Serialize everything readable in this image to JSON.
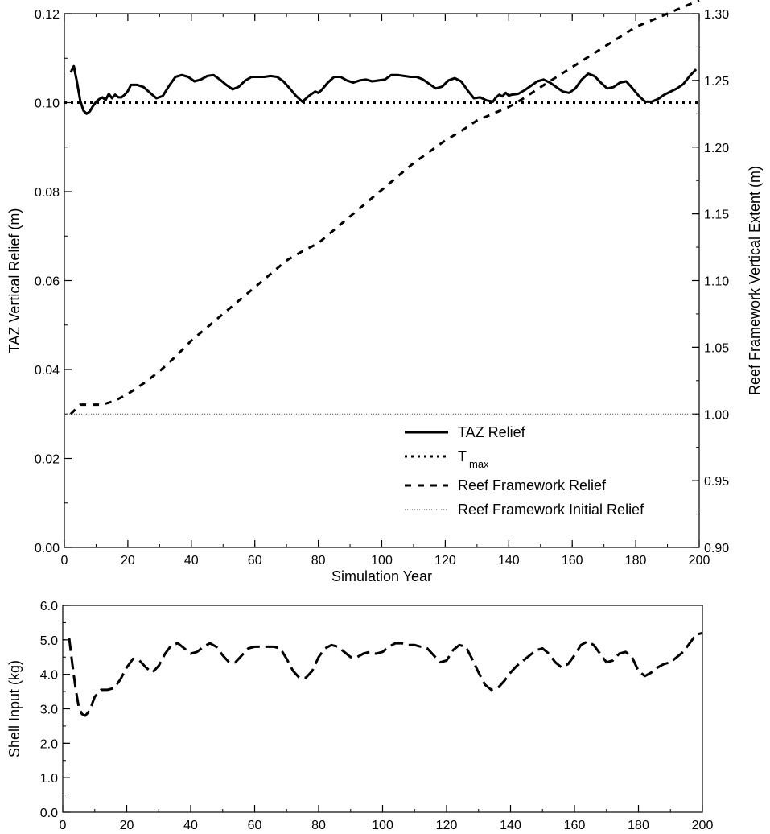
{
  "chart_data": [
    {
      "type": "line",
      "xlabel": "Simulation Year",
      "ylabel": "TAZ Vertical Relief (m)",
      "y2label": "Reef Framework Vertical Extent (m)",
      "xlim": [
        0,
        200
      ],
      "ylim": [
        0,
        0.12
      ],
      "y2lim": [
        0.9,
        1.3
      ],
      "xticks": [
        "0",
        "20",
        "40",
        "60",
        "80",
        "100",
        "120",
        "140",
        "160",
        "180",
        "200"
      ],
      "yticks": [
        "0.00",
        "0.02",
        "0.04",
        "0.06",
        "0.08",
        "0.10",
        "0.12"
      ],
      "y2ticks": [
        "0.90",
        "0.95",
        "1.00",
        "1.05",
        "1.10",
        "1.15",
        "1.20",
        "1.25",
        "1.30"
      ],
      "grid": false,
      "legend_position": "bottom-right",
      "colors": {
        "line": "#000000",
        "reference": "#555555"
      },
      "legend": [
        {
          "label": "TAZ Relief",
          "style": "solid"
        },
        {
          "label": "T",
          "sub": "max",
          "style": "dotted"
        },
        {
          "label": "Reef Framework Relief",
          "style": "dashed"
        },
        {
          "label": "Reef Framework Initial Relief",
          "style": "thin-dotted"
        }
      ],
      "series": [
        {
          "name": "TAZ Relief",
          "axis": "left",
          "style": "solid",
          "x": [
            2,
            3,
            4,
            5,
            6,
            7,
            8,
            9,
            10,
            11,
            12,
            13,
            14,
            15,
            16,
            17,
            18,
            19,
            20,
            21,
            23,
            25,
            27,
            29,
            31,
            33,
            35,
            37,
            39,
            41,
            43,
            45,
            47,
            49,
            51,
            53,
            55,
            57,
            59,
            61,
            63,
            65,
            67,
            69,
            71,
            73,
            75,
            77,
            79,
            80,
            81,
            83,
            85,
            87,
            89,
            91,
            93,
            95,
            97,
            99,
            101,
            103,
            105,
            107,
            109,
            111,
            113,
            115,
            117,
            119,
            121,
            123,
            125,
            127,
            129,
            131,
            133,
            135,
            136,
            137,
            138,
            139,
            140,
            141,
            143,
            145,
            147,
            149,
            151,
            153,
            155,
            157,
            159,
            161,
            163,
            165,
            167,
            169,
            171,
            173,
            175,
            177,
            179,
            181,
            183,
            185,
            187,
            189,
            191,
            193,
            195,
            197,
            199
          ],
          "y": [
            0.1068,
            0.1082,
            0.1045,
            0.1005,
            0.0982,
            0.0975,
            0.098,
            0.0992,
            0.1002,
            0.1008,
            0.1012,
            0.1006,
            0.102,
            0.101,
            0.1018,
            0.1012,
            0.1012,
            0.1018,
            0.1026,
            0.104,
            0.104,
            0.1035,
            0.1022,
            0.101,
            0.1015,
            0.1038,
            0.1058,
            0.1062,
            0.1058,
            0.1048,
            0.1052,
            0.106,
            0.1062,
            0.1052,
            0.104,
            0.103,
            0.1036,
            0.105,
            0.1058,
            0.1058,
            0.1058,
            0.106,
            0.1058,
            0.1048,
            0.1032,
            0.1015,
            0.1002,
            0.1015,
            0.1025,
            0.1022,
            0.1028,
            0.1045,
            0.1058,
            0.1058,
            0.105,
            0.1045,
            0.105,
            0.1052,
            0.1048,
            0.105,
            0.1052,
            0.1062,
            0.1062,
            0.106,
            0.1058,
            0.1058,
            0.1052,
            0.1042,
            0.1032,
            0.1036,
            0.105,
            0.1055,
            0.1048,
            0.1028,
            0.101,
            0.1012,
            0.1005,
            0.1002,
            0.1012,
            0.1018,
            0.1014,
            0.1022,
            0.1016,
            0.1018,
            0.102,
            0.1028,
            0.1038,
            0.1048,
            0.1052,
            0.1045,
            0.1035,
            0.1025,
            0.1022,
            0.1032,
            0.1052,
            0.1065,
            0.106,
            0.1045,
            0.1032,
            0.1035,
            0.1045,
            0.1048,
            0.1032,
            0.1015,
            0.1002,
            0.1002,
            0.1008,
            0.1018,
            0.1025,
            0.1032,
            0.1042,
            0.106,
            0.1075
          ]
        },
        {
          "name": "T",
          "name_sub": "max",
          "axis": "left",
          "style": "dotted",
          "x": [
            0,
            200
          ],
          "y": [
            0.1,
            0.1
          ]
        },
        {
          "name": "Reef Framework Relief",
          "axis": "right",
          "style": "dashed",
          "x": [
            2,
            5,
            8,
            12,
            16,
            20,
            25,
            30,
            35,
            40,
            50,
            60,
            70,
            75,
            80,
            85,
            90,
            100,
            110,
            120,
            125,
            130,
            135,
            140,
            145,
            150,
            160,
            170,
            180,
            190,
            200
          ],
          "y": [
            1.0,
            1.007,
            1.007,
            1.007,
            1.01,
            1.015,
            1.023,
            1.032,
            1.043,
            1.055,
            1.075,
            1.095,
            1.115,
            1.122,
            1.128,
            1.138,
            1.148,
            1.168,
            1.188,
            1.205,
            1.212,
            1.22,
            1.225,
            1.23,
            1.237,
            1.245,
            1.26,
            1.275,
            1.29,
            1.3,
            1.31
          ]
        },
        {
          "name": "Reef Framework Initial Relief",
          "axis": "right",
          "style": "thin-dotted",
          "x": [
            0,
            200
          ],
          "y": [
            1.0,
            1.0
          ]
        }
      ]
    },
    {
      "type": "line",
      "xlabel": "Simulation Year",
      "ylabel": "Shell Input (kg)",
      "xlim": [
        0,
        200
      ],
      "ylim": [
        0,
        6
      ],
      "xticks": [
        "0",
        "20",
        "40",
        "60",
        "80",
        "100",
        "120",
        "140",
        "160",
        "180",
        "200"
      ],
      "yticks": [
        "0.0",
        "1.0",
        "2.0",
        "3.0",
        "4.0",
        "5.0",
        "6.0"
      ],
      "grid": false,
      "series": [
        {
          "style": "long-dashed",
          "x": [
            2,
            3,
            4,
            5,
            6,
            7,
            8,
            9,
            10,
            12,
            14,
            16,
            18,
            20,
            22,
            24,
            26,
            28,
            30,
            32,
            34,
            36,
            38,
            40,
            42,
            44,
            46,
            48,
            50,
            52,
            54,
            56,
            58,
            60,
            62,
            64,
            66,
            68,
            70,
            72,
            74,
            76,
            78,
            80,
            82,
            84,
            86,
            88,
            90,
            92,
            94,
            96,
            98,
            100,
            102,
            104,
            106,
            108,
            110,
            112,
            114,
            116,
            118,
            120,
            122,
            124,
            126,
            128,
            130,
            132,
            134,
            136,
            138,
            140,
            142,
            144,
            146,
            148,
            150,
            152,
            154,
            156,
            158,
            160,
            162,
            164,
            166,
            168,
            170,
            172,
            174,
            176,
            178,
            180,
            182,
            184,
            186,
            188,
            190,
            192,
            194,
            196,
            198,
            200
          ],
          "y": [
            5.05,
            4.3,
            3.6,
            3.05,
            2.85,
            2.8,
            2.9,
            3.1,
            3.35,
            3.55,
            3.55,
            3.6,
            3.85,
            4.2,
            4.45,
            4.4,
            4.2,
            4.05,
            4.25,
            4.6,
            4.85,
            4.9,
            4.75,
            4.6,
            4.65,
            4.8,
            4.9,
            4.8,
            4.55,
            4.35,
            4.35,
            4.55,
            4.75,
            4.8,
            4.8,
            4.8,
            4.8,
            4.75,
            4.45,
            4.1,
            3.9,
            3.9,
            4.1,
            4.5,
            4.75,
            4.85,
            4.8,
            4.65,
            4.5,
            4.5,
            4.6,
            4.65,
            4.6,
            4.65,
            4.8,
            4.9,
            4.9,
            4.85,
            4.85,
            4.8,
            4.75,
            4.55,
            4.35,
            4.4,
            4.7,
            4.85,
            4.8,
            4.45,
            4.05,
            3.7,
            3.55,
            3.6,
            3.8,
            4.05,
            4.25,
            4.4,
            4.55,
            4.7,
            4.75,
            4.6,
            4.35,
            4.2,
            4.3,
            4.55,
            4.85,
            4.95,
            4.85,
            4.6,
            4.35,
            4.4,
            4.6,
            4.65,
            4.5,
            4.1,
            3.95,
            4.05,
            4.2,
            4.3,
            4.35,
            4.5,
            4.65,
            4.9,
            5.15,
            5.2
          ]
        }
      ]
    }
  ]
}
